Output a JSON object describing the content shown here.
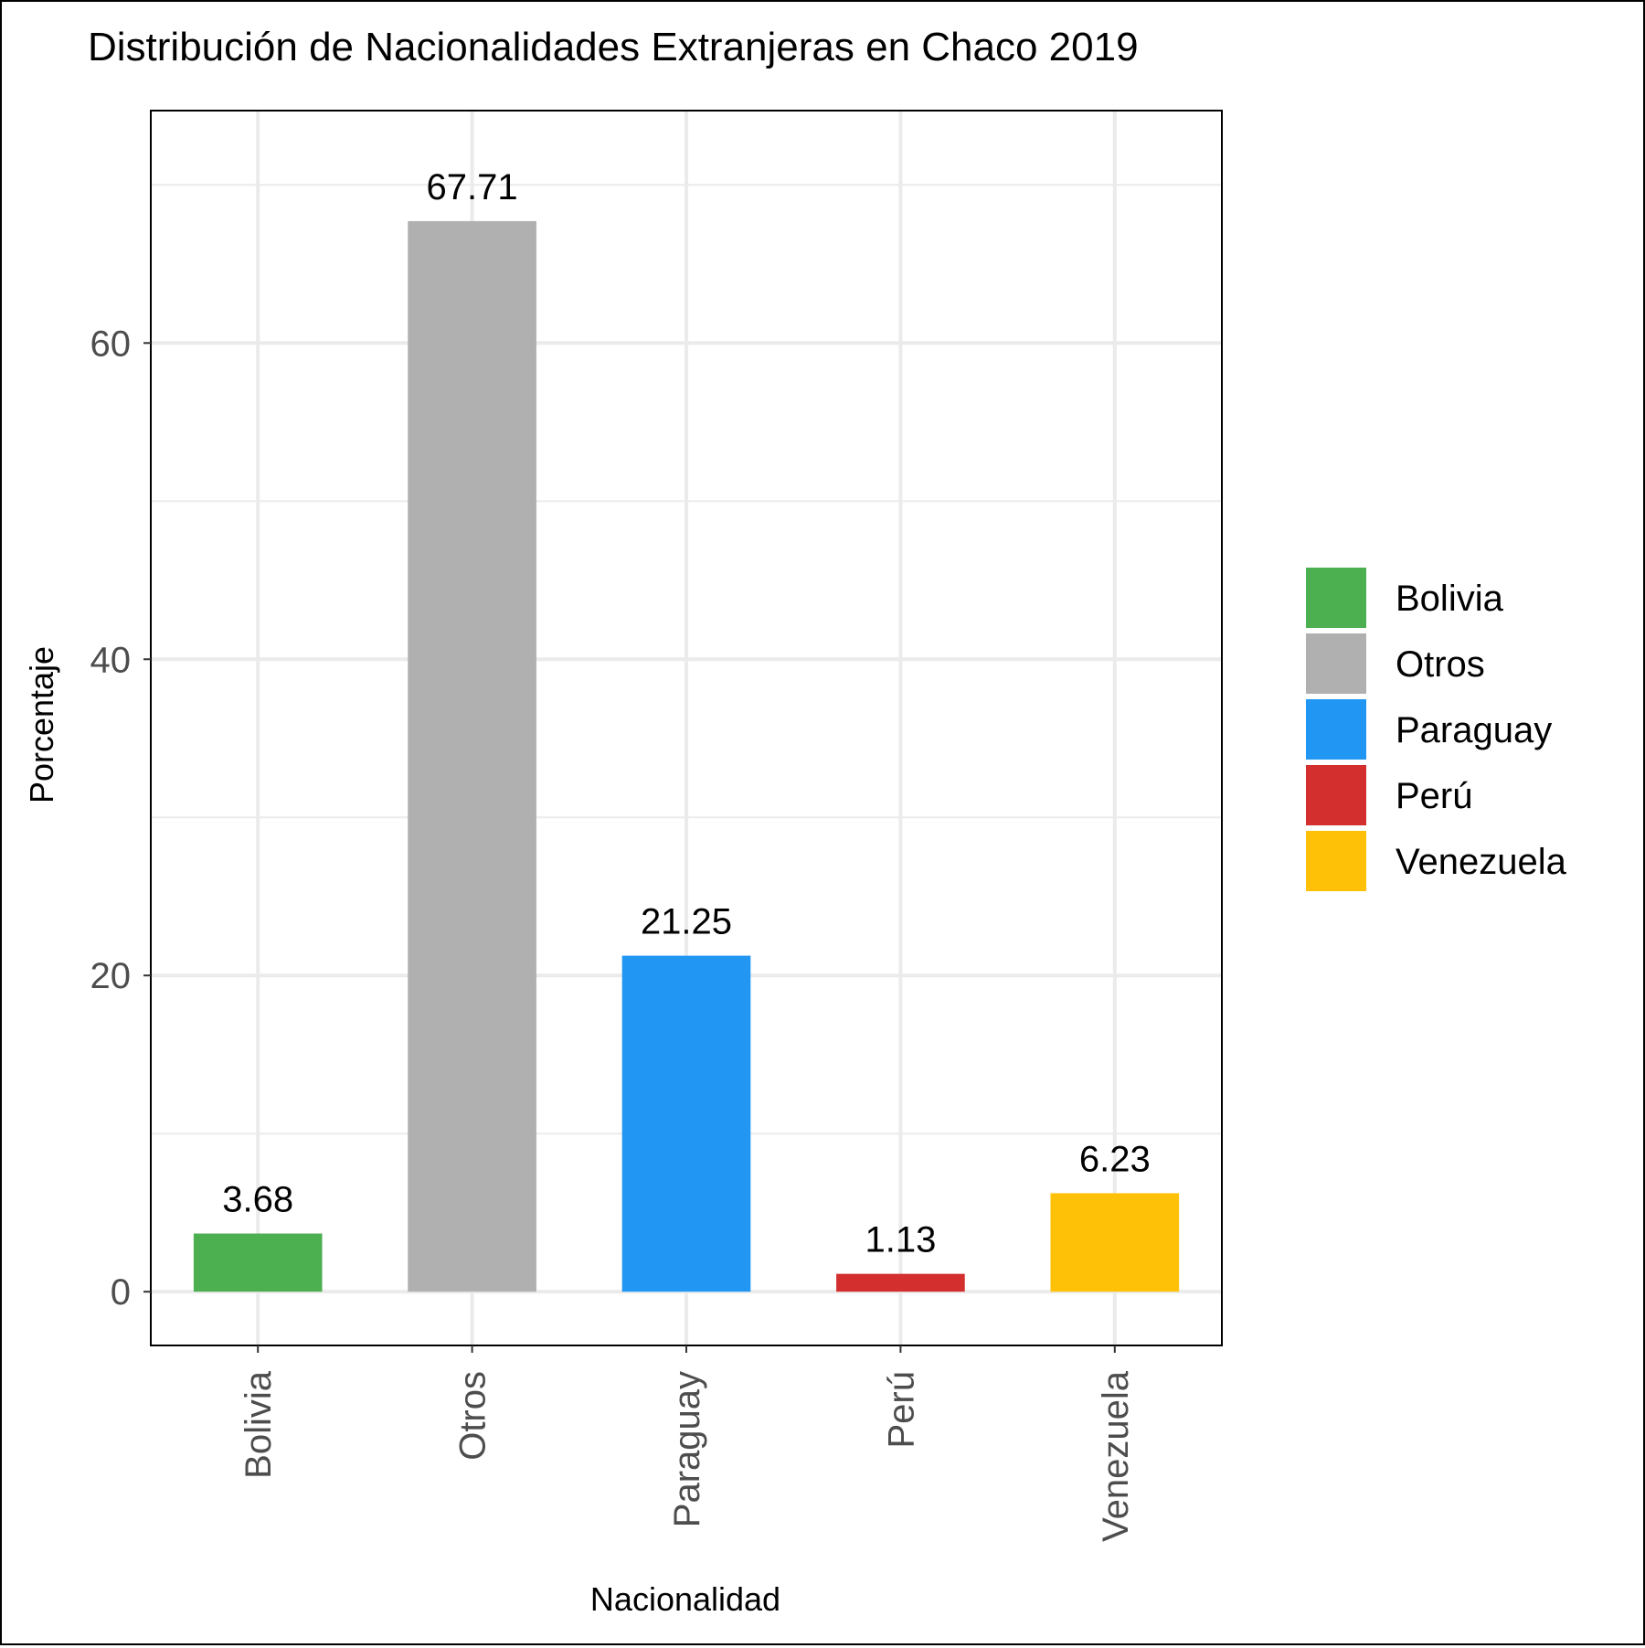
{
  "chart_data": {
    "type": "bar",
    "title": "Distribución de Nacionalidades Extranjeras en Chaco 2019",
    "xlabel": "Nacionalidad",
    "ylabel": "Porcentaje",
    "categories": [
      "Bolivia",
      "Otros",
      "Paraguay",
      "Perú",
      "Venezuela"
    ],
    "values": [
      3.68,
      67.71,
      21.25,
      1.13,
      6.23
    ],
    "value_labels": [
      "3.68",
      "67.71",
      "21.25",
      "1.13",
      "6.23"
    ],
    "colors": [
      "#4CAF50",
      "#B0B0B0",
      "#2196F3",
      "#D32F2F",
      "#FFC107"
    ],
    "ylim": [
      -3.4,
      74.7
    ],
    "yticks": [
      0,
      20,
      40,
      60
    ],
    "ytick_labels": [
      "0",
      "20",
      "40",
      "60"
    ],
    "grid": true,
    "legend": {
      "position": "right",
      "entries": [
        "Bolivia",
        "Otros",
        "Paraguay",
        "Perú",
        "Venezuela"
      ]
    }
  }
}
